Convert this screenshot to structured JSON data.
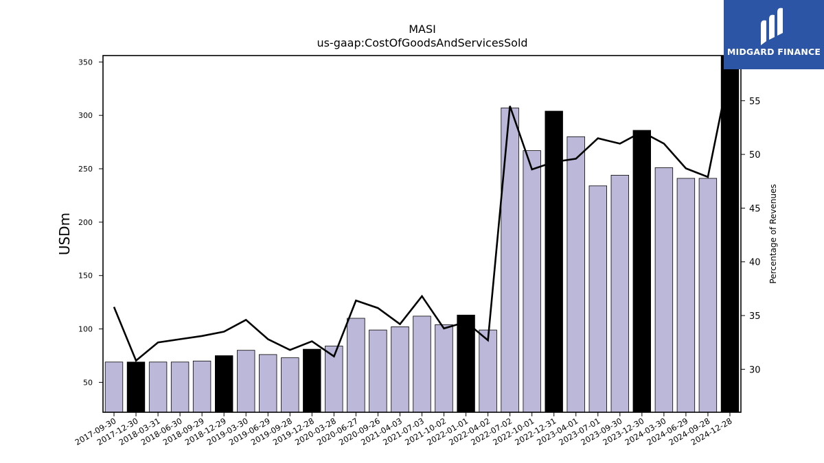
{
  "brand": {
    "name": "MIDGARD FINANCE",
    "bg_color": "#2d55a5"
  },
  "chart_data": {
    "type": "bar",
    "title": "MASI",
    "subtitle": "us-gaap:CostOfGoodsAndServicesSold",
    "ylabel": "USDm",
    "y2label": "Percentage of Revenues",
    "ylim": [
      22,
      356
    ],
    "y2lim": [
      26,
      59.2
    ],
    "yticks": [
      50,
      100,
      150,
      200,
      250,
      300,
      350
    ],
    "y2ticks": [
      30,
      35,
      40,
      45,
      50,
      55
    ],
    "categories": [
      "2017-09-30",
      "2017-12-30",
      "2018-03-31",
      "2018-06-30",
      "2018-09-29",
      "2018-12-29",
      "2019-03-30",
      "2019-06-29",
      "2019-09-28",
      "2019-12-28",
      "2020-03-28",
      "2020-06-27",
      "2020-09-26",
      "2021-04-03",
      "2021-07-03",
      "2021-10-02",
      "2022-01-01",
      "2022-04-02",
      "2022-07-02",
      "2022-10-01",
      "2022-12-31",
      "2023-04-01",
      "2023-07-01",
      "2023-09-30",
      "2023-12-30",
      "2024-03-30",
      "2024-06-29",
      "2024-09-28",
      "2024-12-28"
    ],
    "series": [
      {
        "kind": "bar",
        "axis": "left",
        "values": [
          69,
          69,
          69,
          69,
          70,
          75,
          80,
          76,
          73,
          81,
          84,
          110,
          99,
          102,
          112,
          104,
          113,
          99,
          307,
          267,
          304,
          280,
          234,
          244,
          286,
          251,
          241,
          241,
          356
        ],
        "highlight": [
          false,
          true,
          false,
          false,
          false,
          true,
          false,
          false,
          false,
          true,
          false,
          false,
          false,
          false,
          false,
          false,
          true,
          false,
          false,
          false,
          true,
          false,
          false,
          false,
          true,
          false,
          false,
          false,
          true
        ]
      },
      {
        "kind": "line",
        "axis": "right",
        "values": [
          35.8,
          30.8,
          32.5,
          32.8,
          33.1,
          33.5,
          34.6,
          32.8,
          31.8,
          32.6,
          31.2,
          36.4,
          35.7,
          34.2,
          36.8,
          33.8,
          34.4,
          32.7,
          54.5,
          48.6,
          49.3,
          49.6,
          51.5,
          51.0,
          52.1,
          51.0,
          48.7,
          47.9,
          58.0
        ]
      }
    ],
    "colors": {
      "bar": "#bcb8d9",
      "bar_highlight": "#000000",
      "bar_edge": "#000000",
      "line": "#000000"
    },
    "grid": false,
    "legend": "none"
  }
}
